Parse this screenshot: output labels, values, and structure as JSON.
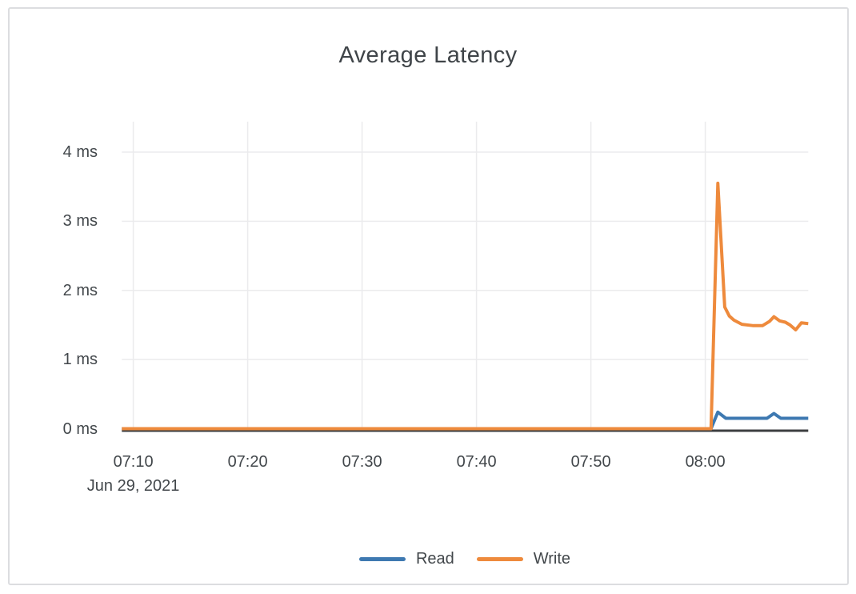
{
  "colors": {
    "background": "#ffffff",
    "card_border": "#dcdde0",
    "grid": "#ebebed",
    "axis_line": "#3c3e40",
    "text": "#42474b",
    "read_series": "#3e79b1",
    "write_series": "#ee8a3c"
  },
  "chart_data": {
    "type": "line",
    "title": "Average Latency",
    "x_axis": {
      "unit": "minutes_after_07:00",
      "domain": [
        9,
        69
      ],
      "date_label": "Jun 29, 2021",
      "ticks": [
        {
          "t": 10,
          "label": "07:10"
        },
        {
          "t": 20,
          "label": "07:20"
        },
        {
          "t": 30,
          "label": "07:30"
        },
        {
          "t": 40,
          "label": "07:40"
        },
        {
          "t": 50,
          "label": "07:50"
        },
        {
          "t": 60,
          "label": "08:00"
        }
      ]
    },
    "y_axis": {
      "unit": "ms",
      "domain": [
        0,
        4.44
      ],
      "ticks": [
        {
          "v": 0,
          "label": "0 ms"
        },
        {
          "v": 1,
          "label": "1 ms"
        },
        {
          "v": 2,
          "label": "2 ms"
        },
        {
          "v": 3,
          "label": "3 ms"
        },
        {
          "v": 4,
          "label": "4 ms"
        }
      ]
    },
    "grid": true,
    "legend_position": "bottom-center",
    "series": [
      {
        "name": "Read",
        "color": "#3e79b1",
        "points": [
          [
            9,
            0
          ],
          [
            60.5,
            0
          ],
          [
            61.1,
            0.24
          ],
          [
            61.8,
            0.15
          ],
          [
            65.4,
            0.15
          ],
          [
            66.0,
            0.22
          ],
          [
            66.6,
            0.15
          ],
          [
            69,
            0.15
          ]
        ]
      },
      {
        "name": "Write",
        "color": "#ee8a3c",
        "points": [
          [
            9,
            0
          ],
          [
            60.5,
            0
          ],
          [
            61.1,
            3.55
          ],
          [
            61.7,
            1.76
          ],
          [
            62.1,
            1.63
          ],
          [
            62.5,
            1.57
          ],
          [
            63.2,
            1.51
          ],
          [
            64.2,
            1.49
          ],
          [
            65.0,
            1.49
          ],
          [
            65.6,
            1.55
          ],
          [
            66.0,
            1.62
          ],
          [
            66.5,
            1.56
          ],
          [
            67.0,
            1.54
          ],
          [
            67.4,
            1.5
          ],
          [
            67.9,
            1.43
          ],
          [
            68.4,
            1.53
          ],
          [
            69,
            1.52
          ]
        ]
      }
    ]
  }
}
